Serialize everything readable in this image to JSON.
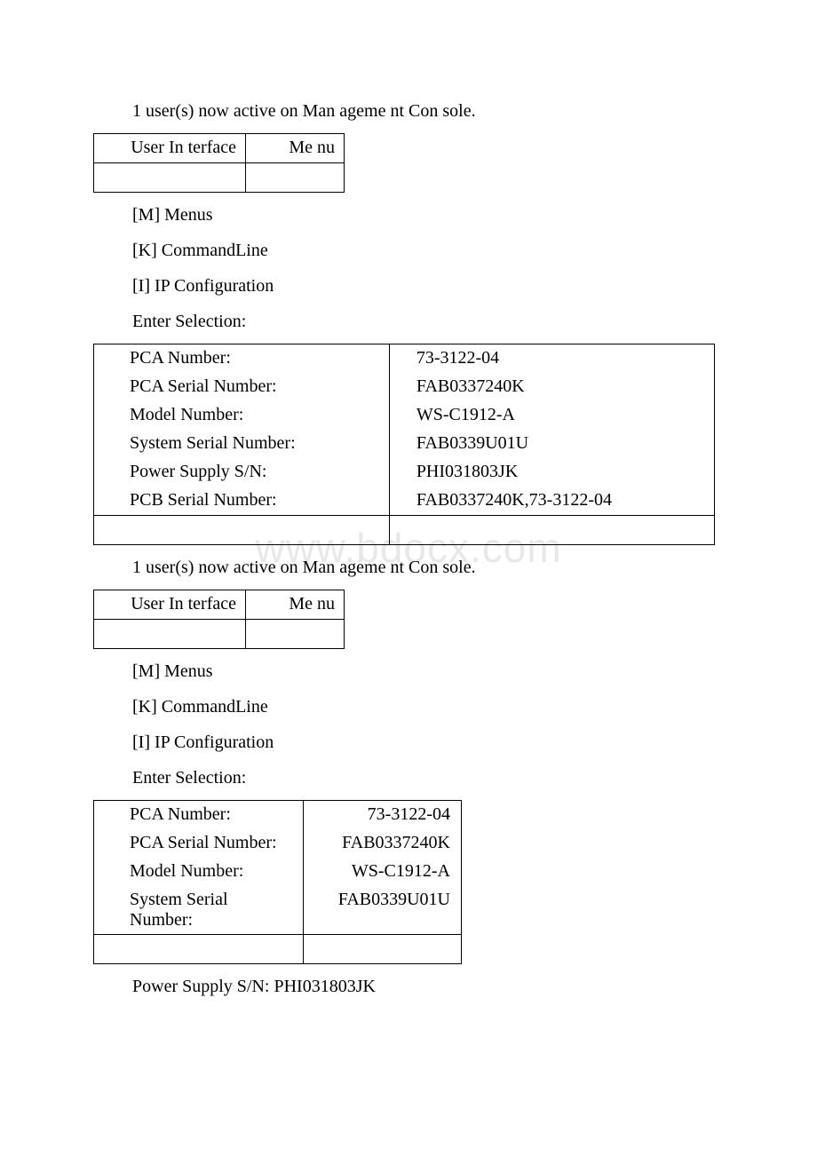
{
  "watermark": "www.bdocx.com",
  "section1": {
    "active_users_line": "1 user(s) now active on Man ageme nt Con sole.",
    "ui_table": {
      "left": "User In terface",
      "right": "Me nu"
    },
    "menu_m": "[M] Menus",
    "menu_k": "[K] CommandLine",
    "menu_i": "[I] IP Configuration",
    "prompt": "Enter Selection:",
    "rows": [
      {
        "label": "PCA Number:",
        "value": "73-3122-04"
      },
      {
        "label": "PCA Serial Number:",
        "value": "FAB0337240K"
      },
      {
        "label": "Model Number:",
        "value": "WS-C1912-A"
      },
      {
        "label": "System Serial Number:",
        "value": "FAB0339U01U"
      },
      {
        "label": "Power Supply S/N:",
        "value": "PHI031803JK"
      },
      {
        "label": "PCB Serial Number:",
        "value": "FAB0337240K,73-3122-04"
      }
    ]
  },
  "section2": {
    "active_users_line": "1 user(s) now active on Man ageme nt Con sole.",
    "ui_table": {
      "left": "User In terface",
      "right": "Me nu"
    },
    "menu_m": "[M] Menus",
    "menu_k": "[K] CommandLine",
    "menu_i": "[I] IP Configuration",
    "prompt": "Enter Selection:",
    "rows": [
      {
        "label": "PCA Number:",
        "value": "73-3122-04"
      },
      {
        "label": "PCA Serial Number:",
        "value": "FAB0337240K"
      },
      {
        "label": "Model Number:",
        "value": "WS-C1912-A"
      },
      {
        "label": "System Serial Number:",
        "value": "FAB0339U01U"
      }
    ],
    "footer_line": "Power Supply S/N: PHI031803JK"
  }
}
